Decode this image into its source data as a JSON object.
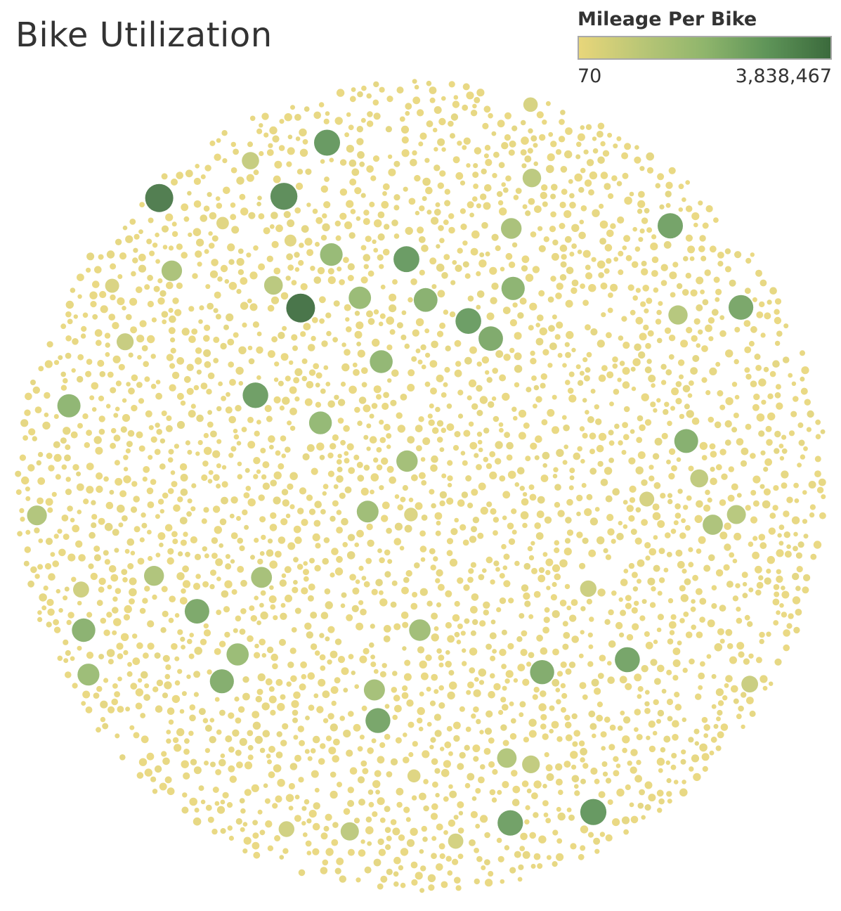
{
  "title": "Bike Utilization",
  "legend": {
    "title": "Mileage Per Bike",
    "min_label": "70",
    "max_label": "3,838,467",
    "colors": [
      "#e8d67a",
      "#b9c676",
      "#8fb56c",
      "#5e9458",
      "#3b6a3c"
    ]
  },
  "chart_data": {
    "type": "packed-bubble",
    "title": "Bike Utilization",
    "measure": "Mileage Per Bike",
    "color_range": [
      70,
      3838467
    ],
    "highlighted_values": [
      3838467,
      3600000,
      3200000,
      2950000,
      2900000,
      2850000,
      2800000,
      2750000,
      2700000,
      2650000,
      2600000,
      2550000,
      2500000,
      2450000,
      2400000,
      2350000,
      2300000,
      2250000,
      2200000,
      2150000,
      2100000,
      2050000,
      2000000,
      1950000,
      1900000,
      1850000,
      1800000,
      1750000,
      1700000,
      1650000,
      1600000,
      1550000,
      1500000,
      1450000,
      1400000,
      1350000,
      1300000,
      1250000,
      1200000,
      1150000,
      1100000,
      1050000,
      1000000,
      950000,
      900000,
      850000,
      800000,
      750000,
      700000,
      650000,
      600000,
      550000,
      500000,
      450000,
      400000,
      350000,
      300000,
      250000,
      200000,
      150000
    ],
    "background_bubble_count": 4200,
    "background_value_range": [
      70,
      120000
    ]
  }
}
